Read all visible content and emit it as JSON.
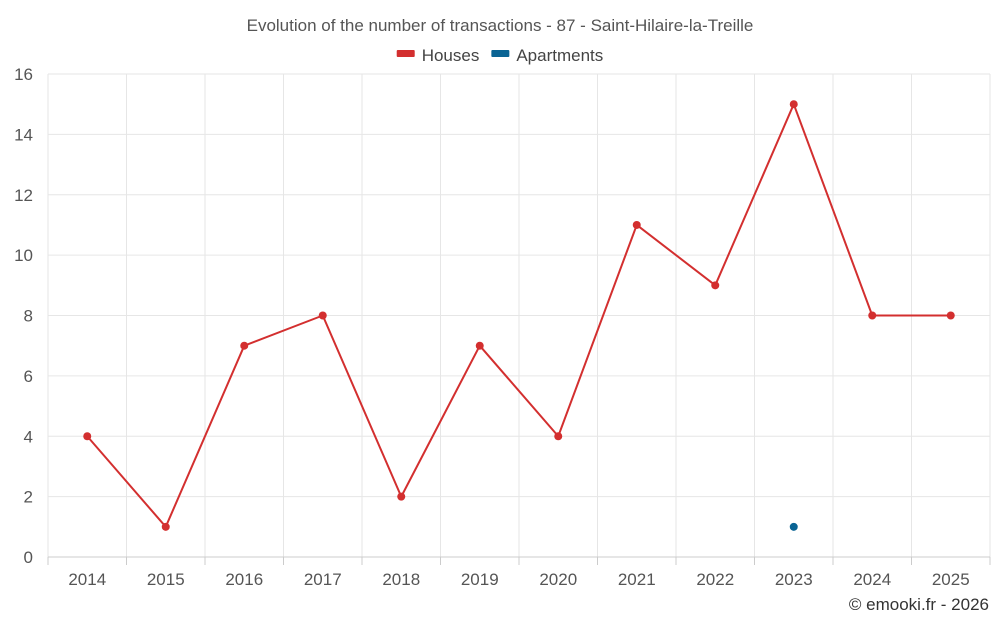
{
  "chart_data": {
    "type": "line",
    "title": "Evolution of the number of transactions - 87 - Saint-Hilaire-la-Treille",
    "xlabel": "",
    "ylabel": "",
    "categories": [
      "2014",
      "2015",
      "2016",
      "2017",
      "2018",
      "2019",
      "2020",
      "2021",
      "2022",
      "2023",
      "2024",
      "2025"
    ],
    "ylim": [
      0,
      16
    ],
    "yticks": [
      0,
      2,
      4,
      6,
      8,
      10,
      12,
      14,
      16
    ],
    "grid": true,
    "legend_position": "top-center",
    "series": [
      {
        "name": "Houses",
        "color": "#d32f2f",
        "values": [
          4,
          1,
          7,
          8,
          2,
          7,
          4,
          11,
          9,
          15,
          8,
          8
        ]
      },
      {
        "name": "Apartments",
        "color": "#0a6494",
        "values": [
          null,
          null,
          null,
          null,
          null,
          null,
          null,
          null,
          null,
          1,
          null,
          null
        ]
      }
    ],
    "credit": "© emooki.fr - 2026"
  }
}
